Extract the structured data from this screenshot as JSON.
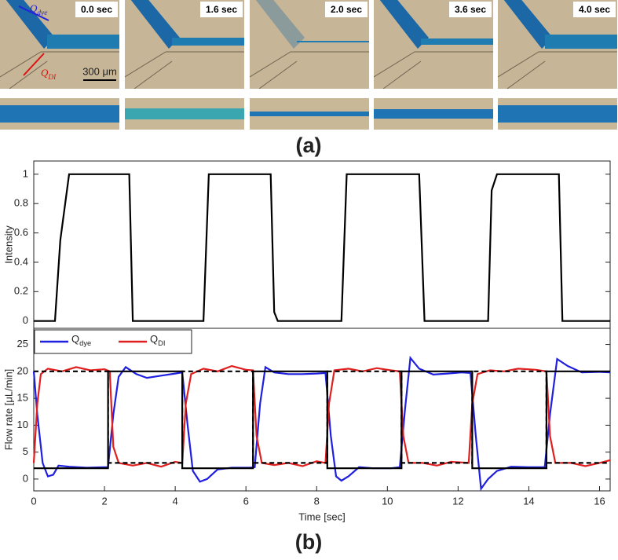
{
  "images": {
    "time_labels": [
      "0.0 sec",
      "1.6 sec",
      "2.0 sec",
      "3.6 sec",
      "4.0 sec"
    ],
    "flow_labels": [
      {
        "name": "Qdye",
        "color": "#2222dd"
      },
      {
        "name": "QDI",
        "color": "#dd1111"
      }
    ],
    "scale_bar": "300 μm"
  },
  "captions": [
    "(a)",
    "(b)"
  ],
  "chart_data": [
    {
      "type": "line",
      "ylabel": "Intensity",
      "xlim": [
        0,
        16.3
      ],
      "ylim": [
        -0.05,
        1.09
      ],
      "yticks": [
        0,
        0.2,
        0.4,
        0.6,
        0.8,
        1
      ],
      "series": [
        {
          "color": "#000000",
          "x": [
            0,
            0.6,
            0.75,
            1,
            2.7,
            2.8,
            4.8,
            4.95,
            6.7,
            6.8,
            6.9,
            8.7,
            8.85,
            10.9,
            11.05,
            12.85,
            12.95,
            13.1,
            14.85,
            14.95,
            16.3
          ],
          "values": [
            0,
            0,
            0.55,
            1,
            1,
            0,
            0,
            1,
            1,
            0.06,
            0,
            0,
            1,
            1,
            0,
            0,
            0.89,
            1,
            1,
            0,
            0
          ]
        }
      ]
    },
    {
      "type": "line",
      "xlabel": "Time [sec]",
      "ylabel": "Flow rate [μL/min]",
      "xlim": [
        0,
        16.3
      ],
      "ylim": [
        -2.2,
        28
      ],
      "xticks": [
        0,
        2,
        4,
        6,
        8,
        10,
        12,
        14,
        16
      ],
      "yticks": [
        0,
        5,
        10,
        15,
        20,
        25
      ],
      "legend": "upper-left",
      "series": [
        {
          "name": "Qdye",
          "color": "#1f1fe0",
          "x": [
            0,
            0.1,
            0.25,
            0.4,
            0.55,
            0.7,
            1,
            1.5,
            2,
            2.1,
            2.25,
            2.4,
            2.6,
            2.9,
            3.2,
            3.6,
            4,
            4.2,
            4.35,
            4.5,
            4.7,
            4.9,
            5.2,
            5.6,
            6.1,
            6.25,
            6.4,
            6.55,
            6.8,
            7.2,
            7.6,
            8,
            8.25,
            8.4,
            8.55,
            8.7,
            8.9,
            9.2,
            9.6,
            10.1,
            10.35,
            10.5,
            10.65,
            10.9,
            11.3,
            11.7,
            12.1,
            12.35,
            12.5,
            12.65,
            12.85,
            13.1,
            13.5,
            14,
            14.45,
            14.6,
            14.8,
            15.1,
            15.5,
            16,
            16.3
          ],
          "values": [
            20,
            12,
            3,
            0.5,
            0.8,
            2.5,
            2.3,
            2.1,
            2.2,
            2.2,
            12,
            19,
            20.8,
            19.5,
            18.8,
            19.2,
            19.6,
            19.8,
            10,
            1.5,
            -0.5,
            0,
            1.8,
            2.1,
            2.1,
            2.2,
            14,
            20.8,
            19.8,
            19.5,
            19.5,
            19.6,
            19.7,
            8,
            0.5,
            -0.3,
            0.5,
            2.2,
            2,
            2,
            2.2,
            13,
            22.5,
            20.5,
            19.4,
            19.6,
            19.8,
            19.7,
            8,
            -1.8,
            0,
            1.5,
            2.3,
            2.2,
            2.2,
            12,
            22.3,
            21,
            19.8,
            19.9,
            19.8
          ]
        },
        {
          "name": "QDI",
          "color": "#e01f1f",
          "x": [
            0,
            0.1,
            0.2,
            0.4,
            0.8,
            1.2,
            1.6,
            2,
            2.15,
            2.25,
            2.4,
            2.8,
            3.2,
            3.6,
            4,
            4.2,
            4.3,
            4.45,
            4.8,
            5.2,
            5.6,
            6,
            6.2,
            6.3,
            6.45,
            6.8,
            7.2,
            7.6,
            8,
            8.25,
            8.35,
            8.5,
            8.9,
            9.3,
            9.7,
            10.1,
            10.35,
            10.45,
            10.6,
            11,
            11.4,
            11.8,
            12.3,
            12.4,
            12.55,
            12.9,
            13.3,
            13.7,
            14.2,
            14.5,
            14.6,
            14.75,
            15.2,
            15.6,
            16,
            16.3
          ],
          "values": [
            3,
            14,
            19.5,
            20.5,
            20,
            20.8,
            20.2,
            20.4,
            20,
            6,
            3,
            2.5,
            3,
            2.3,
            3.2,
            3,
            14,
            19.5,
            20.5,
            20,
            21,
            20.3,
            20.2,
            8,
            3,
            2.6,
            3,
            2.4,
            3.3,
            3,
            14,
            20.2,
            20.5,
            20,
            20.6,
            20.2,
            20,
            8,
            3,
            3,
            2.5,
            3.2,
            3,
            14,
            19.5,
            20.2,
            20,
            20.5,
            20.3,
            20,
            8,
            3,
            3,
            2.4,
            3,
            3.5
          ]
        },
        {
          "color": "#000000",
          "x": [
            0,
            2.1,
            2.1,
            4.2,
            4.2,
            6.2,
            6.2,
            8.3,
            8.3,
            10.4,
            10.4,
            12.4,
            12.4,
            14.5,
            14.5,
            16.3
          ],
          "values": [
            2,
            2,
            20,
            20,
            2,
            2,
            20,
            20,
            2,
            2,
            20,
            20,
            2,
            2,
            20,
            20
          ]
        },
        {
          "color": "#000000",
          "dash": true,
          "x": [
            0,
            2.1,
            2.1,
            4.2,
            4.2,
            6.2,
            6.2,
            8.3,
            8.3,
            10.4,
            10.4,
            12.4,
            12.4,
            14.5,
            14.5,
            16.3
          ],
          "values": [
            20,
            20,
            3,
            3,
            20,
            20,
            3,
            3,
            20,
            20,
            3,
            3,
            20,
            20,
            3,
            3
          ]
        }
      ]
    }
  ]
}
